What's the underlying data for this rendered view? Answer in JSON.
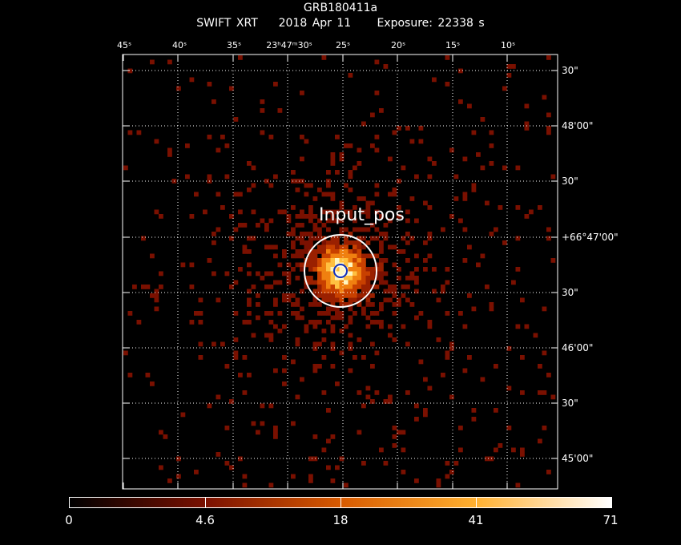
{
  "title": "GRB180411a",
  "subtitle_instrument": "SWIFT XRT",
  "subtitle_date": "2018 Apr 11",
  "subtitle_exposure": "Exposure: 22338 s",
  "ra_ticks": [
    "45ˢ",
    "40ˢ",
    "35ˢ",
    "23ʰ47ᵐ30ˢ",
    "25ˢ",
    "20ˢ",
    "15ˢ",
    "10ˢ"
  ],
  "dec_ticks": [
    "30\"",
    "48'00\"",
    "30\"",
    "+66°47'00\"",
    "30\"",
    "46'00\"",
    "30\"",
    "45'00\""
  ],
  "source_label": "Input_pos",
  "colorbar_labels": [
    "0",
    "4.6",
    "18",
    "41",
    "71"
  ],
  "colors": {
    "background": "#000000",
    "low": "#7a1000",
    "mid": "#d85a00",
    "high": "#ffb030",
    "peak": "#ffffff",
    "circle": "#ffffff",
    "marker": "#1030c0"
  }
}
